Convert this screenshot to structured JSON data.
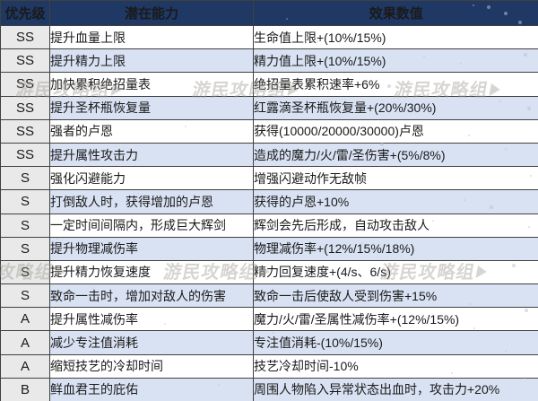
{
  "colors": {
    "header_bg": "#1f3864",
    "header_text": "#ffffff",
    "row_white": "#ffffff",
    "row_blue": "#d9e2f3",
    "priority_bg": "#e9e9e9",
    "border": "#404040",
    "text": "#1a1a1a"
  },
  "watermark": {
    "text": "游民攻略组"
  },
  "table": {
    "columns": [
      {
        "key": "priority",
        "label": "优先级"
      },
      {
        "key": "ability",
        "label": "潜在能力"
      },
      {
        "key": "effect",
        "label": "效果数值"
      }
    ],
    "rows": [
      {
        "priority": "SS",
        "ability": "提升血量上限",
        "effect": "生命值上限+(10%/15%)"
      },
      {
        "priority": "SS",
        "ability": "提升精力上限",
        "effect": "精力值上限+(10%/15%)"
      },
      {
        "priority": "SS",
        "ability": "加快累积绝招量表",
        "effect": "绝招量表累积速率+6%"
      },
      {
        "priority": "SS",
        "ability": "提升圣杯瓶恢复量",
        "effect": "红露滴圣杯瓶恢复量+(20%/30%)"
      },
      {
        "priority": "SS",
        "ability": "强者的卢恩",
        "effect": "获得(10000/20000/30000)卢恩"
      },
      {
        "priority": "SS",
        "ability": "提升属性攻击力",
        "effect": "造成的魔力/火/雷/圣伤害+(5%/8%)"
      },
      {
        "priority": "S",
        "ability": "强化闪避能力",
        "effect": "增强闪避动作无敌帧"
      },
      {
        "priority": "S",
        "ability": "打倒敌人时，获得增加的卢恩",
        "effect": "获得的卢恩+10%"
      },
      {
        "priority": "S",
        "ability": "一定时间间隔内，形成巨大辉剑",
        "effect": "辉剑会先后形成，自动攻击敌人"
      },
      {
        "priority": "S",
        "ability": "提升物理减伤率",
        "effect": "物理减伤率+(12%/15%/18%)"
      },
      {
        "priority": "S",
        "ability": "提升精力恢复速度",
        "effect": "精力回复速度+(4/s、6/s)"
      },
      {
        "priority": "S",
        "ability": "致命一击时，增加对敌人的伤害",
        "effect": "致命一击后使敌人受到伤害+15%"
      },
      {
        "priority": "A",
        "ability": "提升属性减伤率",
        "effect": "魔力/火/雷/圣属性减伤率+(12%/15%)"
      },
      {
        "priority": "A",
        "ability": "减少专注值消耗",
        "effect": "专注值消耗-(10%/15%)"
      },
      {
        "priority": "A",
        "ability": "缩短技艺的冷却时间",
        "effect": "技艺冷却时间-10%"
      },
      {
        "priority": "B",
        "ability": "鲜血君王的庇佑",
        "effect": "周围人物陷入异常状态出血时，攻击力+20%"
      }
    ]
  }
}
